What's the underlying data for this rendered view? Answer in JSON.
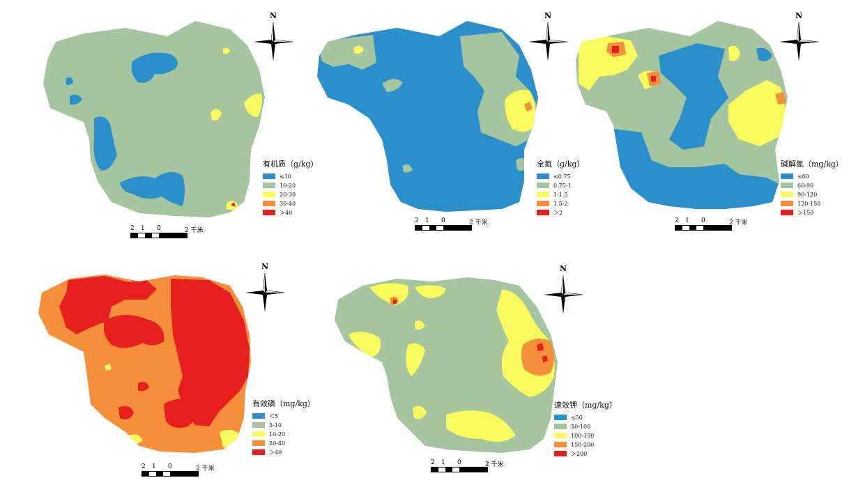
{
  "colors": {
    "blue": "#2b8fcb",
    "green": "#a4c59d",
    "yellow": "#fafa5e",
    "orange": "#f68f3a",
    "red": "#e81f1f"
  },
  "north_label": "N",
  "scale": {
    "left": "2",
    "mid": "1",
    "zero": "0",
    "right": "2 千米"
  },
  "maps": [
    {
      "title": "有机质（g/kg）",
      "legend": [
        "≤10",
        "10-20",
        "20-30",
        "30-40",
        "＞40"
      ]
    },
    {
      "title": "全氮（g/kg）",
      "legend": [
        "≤0.75",
        "0.75-1",
        "1-1.5",
        "1.5-2",
        "＞2"
      ]
    },
    {
      "title": "碱解氮（mg/kg）",
      "legend": [
        "≤60",
        "60-90",
        "90-120",
        "120-150",
        "＞150"
      ]
    },
    {
      "title": "有效磷（mg/kg）",
      "legend": [
        "＜5",
        "5-10",
        "10-20",
        "20-40",
        "＞40"
      ]
    },
    {
      "title": "速效钾（mg/kg）",
      "legend": [
        "≤50",
        "50-100",
        "100-150",
        "150-200",
        "＞200"
      ]
    }
  ]
}
